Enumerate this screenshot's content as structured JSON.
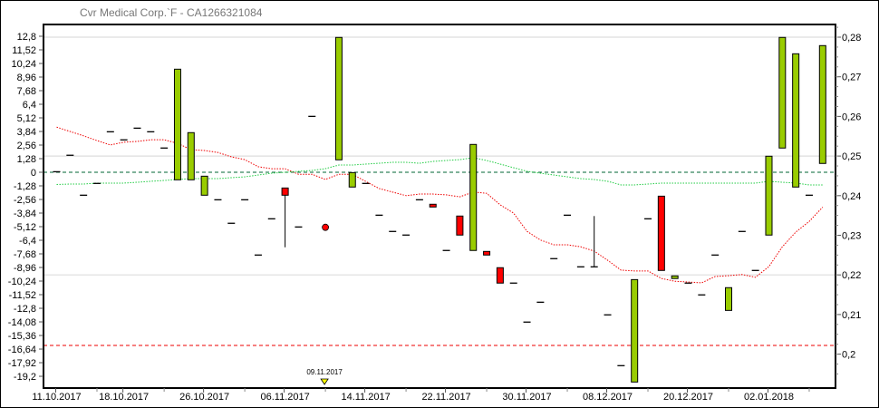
{
  "chart_data": {
    "type": "candlestick",
    "title": "Cvr Medical Corp.`F - CA1266321084",
    "left_axis": {
      "ylim": [
        -20.5,
        14
      ],
      "ticks": [
        12.8,
        11.52,
        10.24,
        8.96,
        7.68,
        6.4,
        5.12,
        3.84,
        2.56,
        1.28,
        0,
        -1.28,
        -2.56,
        -3.84,
        -5.12,
        -6.4,
        -7.68,
        -8.96,
        -10.24,
        -11.52,
        -12.8,
        -14.08,
        -15.36,
        -16.64,
        -17.92,
        -19.2
      ],
      "tick_labels": [
        "12,8",
        "11,52",
        "10,24",
        "8,96",
        "7,68",
        "6,4",
        "5,12",
        "3,84",
        "2,56",
        "1,28",
        "0",
        "-1,28",
        "-2,56",
        "-3,84",
        "-5,12",
        "-6,4",
        "-7,68",
        "-8,96",
        "-10,24",
        "-11,52",
        "-12,8",
        "-14,08",
        "-15,36",
        "-16,64",
        "-17,92",
        "-19,2"
      ]
    },
    "right_axis": {
      "ylim": [
        0.1915,
        0.2833
      ],
      "ticks": [
        0.28,
        0.27,
        0.26,
        0.25,
        0.24,
        0.23,
        0.22,
        0.21,
        0.2
      ],
      "tick_labels": [
        "0,28",
        "0,27",
        "0,26",
        "0,25",
        "0,24",
        "0,23",
        "0,22",
        "0,21",
        "0,2"
      ],
      "grid": [
        0.28,
        0.25,
        0.22
      ]
    },
    "x_tick_labels": [
      {
        "i": 0,
        "label": "11.10.2017"
      },
      {
        "i": 5,
        "label": "18.10.2017"
      },
      {
        "i": 11,
        "label": "26.10.2017"
      },
      {
        "i": 17,
        "label": "06.11.2017"
      },
      {
        "i": 23,
        "label": "14.11.2017"
      },
      {
        "i": 29,
        "label": "22.11.2017"
      },
      {
        "i": 35,
        "label": "30.11.2017"
      },
      {
        "i": 41,
        "label": "08.12.2017"
      },
      {
        "i": 47,
        "label": "20.12.2017"
      },
      {
        "i": 53,
        "label": "02.01.2018"
      }
    ],
    "bars": [
      {
        "i": 0,
        "kind": "dash",
        "v": 0.05
      },
      {
        "i": 1,
        "kind": "dash",
        "v": 1.6
      },
      {
        "i": 2,
        "kind": "dash",
        "v": -2.16
      },
      {
        "i": 3,
        "kind": "dash",
        "v": -1.05
      },
      {
        "i": 4,
        "kind": "dash",
        "v": 3.81
      },
      {
        "i": 5,
        "kind": "dash",
        "v": 3.05
      },
      {
        "i": 6,
        "kind": "dash",
        "v": 4.15
      },
      {
        "i": 7,
        "kind": "dash",
        "v": 3.81
      },
      {
        "i": 8,
        "kind": "dash",
        "v": 2.28
      },
      {
        "i": 9,
        "kind": "up",
        "top": 9.7,
        "bottom": -0.71
      },
      {
        "i": 10,
        "kind": "up",
        "top": 3.73,
        "bottom": -0.71
      },
      {
        "i": 11,
        "kind": "up",
        "top": -0.37,
        "bottom": -2.16
      },
      {
        "i": 12,
        "kind": "dash",
        "v": -2.59
      },
      {
        "i": 13,
        "kind": "dash",
        "v": -4.8
      },
      {
        "i": 14,
        "kind": "dash",
        "v": -2.59
      },
      {
        "i": 15,
        "kind": "dash",
        "v": -7.79
      },
      {
        "i": 16,
        "kind": "dash",
        "v": -4.38
      },
      {
        "i": 17,
        "kind": "down",
        "top": -1.48,
        "bottom": -2.16,
        "low": -7.06
      },
      {
        "i": 18,
        "kind": "dash",
        "v": -5.15
      },
      {
        "i": 19,
        "kind": "dash",
        "v": 5.26
      },
      {
        "i": 20,
        "kind": "dot",
        "v": -5.18
      },
      {
        "i": 21,
        "kind": "up",
        "top": 12.69,
        "bottom": 1.17
      },
      {
        "i": 22,
        "kind": "up",
        "top": -0.03,
        "bottom": -1.39
      },
      {
        "i": 23,
        "kind": "dash",
        "v": -1.05
      },
      {
        "i": 24,
        "kind": "dash",
        "v": -4.04
      },
      {
        "i": 25,
        "kind": "dash",
        "v": -5.57
      },
      {
        "i": 26,
        "kind": "dash",
        "v": -5.91
      },
      {
        "i": 27,
        "kind": "dash",
        "v": -2.59
      },
      {
        "i": 28,
        "kind": "down",
        "top": -3.01,
        "bottom": -3.27
      },
      {
        "i": 29,
        "kind": "dash",
        "v": -7.36
      },
      {
        "i": 30,
        "kind": "down",
        "top": -4.12,
        "bottom": -5.91
      },
      {
        "i": 31,
        "kind": "up",
        "top": 2.62,
        "bottom": -7.36
      },
      {
        "i": 32,
        "kind": "down",
        "top": -7.45,
        "bottom": -7.79
      },
      {
        "i": 33,
        "kind": "down",
        "top": -8.98,
        "bottom": -10.43
      },
      {
        "i": 34,
        "kind": "dash",
        "v": -10.43
      },
      {
        "i": 35,
        "kind": "dash",
        "v": -14.1
      },
      {
        "i": 36,
        "kind": "dash",
        "v": -12.23
      },
      {
        "i": 37,
        "kind": "dash",
        "v": -8.13
      },
      {
        "i": 38,
        "kind": "dash",
        "v": -4.04
      },
      {
        "i": 39,
        "kind": "dash",
        "v": -8.9
      },
      {
        "i": 40,
        "kind": "dash",
        "v": -8.9,
        "high": -4.12
      },
      {
        "i": 41,
        "kind": "dash",
        "v": -13.42
      },
      {
        "i": 42,
        "kind": "dash",
        "v": -18.2
      },
      {
        "i": 43,
        "kind": "up",
        "top": -10.1,
        "bottom": -19.74
      },
      {
        "i": 44,
        "kind": "dash",
        "v": -4.38
      },
      {
        "i": 45,
        "kind": "down",
        "top": -2.25,
        "bottom": -9.24
      },
      {
        "i": 46,
        "kind": "up",
        "top": -9.75,
        "bottom": -10.0
      },
      {
        "i": 47,
        "kind": "dash",
        "v": -10.43
      },
      {
        "i": 48,
        "kind": "dash",
        "v": -11.54
      },
      {
        "i": 49,
        "kind": "dash",
        "v": -7.79
      },
      {
        "i": 50,
        "kind": "up",
        "top": -10.86,
        "bottom": -13.0
      },
      {
        "i": 51,
        "kind": "dash",
        "v": -5.57
      },
      {
        "i": 52,
        "kind": "dash",
        "v": -9.24
      },
      {
        "i": 53,
        "kind": "up",
        "top": 1.51,
        "bottom": -5.91
      },
      {
        "i": 54,
        "kind": "up",
        "top": 12.69,
        "bottom": 2.28
      },
      {
        "i": 55,
        "kind": "up",
        "top": 11.15,
        "bottom": -1.39
      },
      {
        "i": 56,
        "kind": "dash",
        "v": -2.16
      },
      {
        "i": 57,
        "kind": "up",
        "top": 11.92,
        "bottom": 0.83
      }
    ],
    "red_line_right_axis": [
      0.2573,
      0.2562,
      0.2551,
      0.2539,
      0.2528,
      0.2535,
      0.2537,
      0.2541,
      0.2541,
      0.2532,
      0.2516,
      0.2514,
      0.2509,
      0.2498,
      0.2491,
      0.2473,
      0.2468,
      0.2468,
      0.2454,
      0.2454,
      0.2441,
      0.2454,
      0.2454,
      0.2436,
      0.2418,
      0.2409,
      0.24,
      0.2404,
      0.2404,
      0.2402,
      0.2397,
      0.2409,
      0.2406,
      0.2377,
      0.2356,
      0.231,
      0.2288,
      0.2276,
      0.2276,
      0.2271,
      0.226,
      0.2237,
      0.2212,
      0.221,
      0.221,
      0.2191,
      0.2184,
      0.2182,
      0.218,
      0.2196,
      0.2198,
      0.2201,
      0.2194,
      0.2221,
      0.2271,
      0.2308,
      0.2335,
      0.2371
    ],
    "green_line_left_axis": [
      -1.15,
      -1.11,
      -1.11,
      -1.02,
      -1.02,
      -1.02,
      -0.94,
      -0.85,
      -0.77,
      -0.68,
      -0.6,
      -0.6,
      -0.6,
      -0.51,
      -0.43,
      -0.26,
      -0.09,
      0,
      0.09,
      0.17,
      0.34,
      0.68,
      0.68,
      0.77,
      0.85,
      0.94,
      0.94,
      0.85,
      1.02,
      1.11,
      1.19,
      1.37,
      1.11,
      0.77,
      0.43,
      0.09,
      -0.09,
      -0.26,
      -0.43,
      -0.6,
      -0.68,
      -0.85,
      -1.19,
      -1.19,
      -1.11,
      -1.02,
      -1.02,
      -1.02,
      -1.02,
      -1.02,
      -1.02,
      -1.02,
      -1.02,
      -0.85,
      -0.94,
      -1.02,
      -1.19,
      -1.19
    ],
    "reference_lines_left_axis": [
      {
        "v": 0,
        "color": "#006633"
      },
      {
        "v": -16.3,
        "color": "#ee0000"
      }
    ],
    "event_marker": {
      "i": 20,
      "label": "09.11.2017",
      "color": "#ffff00"
    },
    "colors": {
      "up": "#99cc00",
      "down": "#ff0000",
      "red_line": "#ee0000",
      "green_line": "#22cc44",
      "grid": "#dddddd"
    }
  }
}
